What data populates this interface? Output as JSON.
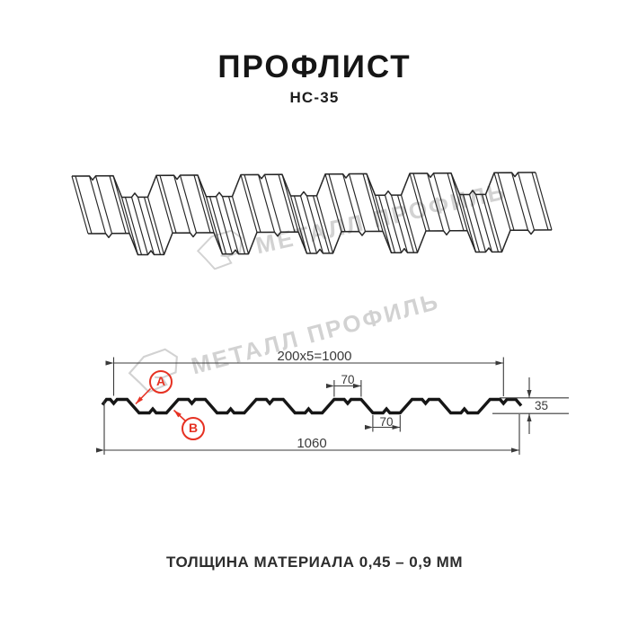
{
  "header": {
    "title": "ПРОФЛИСТ",
    "subtitle": "НС-35"
  },
  "watermark": {
    "text": "МЕТАЛЛ ПРОФИЛЬ",
    "color": "#d2d2d2"
  },
  "diagram": {
    "dim_width_formula": "200x5=1000",
    "dim_overall_width": "1060",
    "dim_crest_width": "70",
    "dim_valley_width": "70",
    "dim_height": "35",
    "label_a": "A",
    "label_b": "B",
    "accent_red": "#e63122",
    "ink": "#262626",
    "profile_color": "#161616",
    "dim_color": "#3a3a3a"
  },
  "footer": {
    "note": "ТОЛЩИНА МАТЕРИАЛА 0,45 – 0,9 ММ"
  }
}
